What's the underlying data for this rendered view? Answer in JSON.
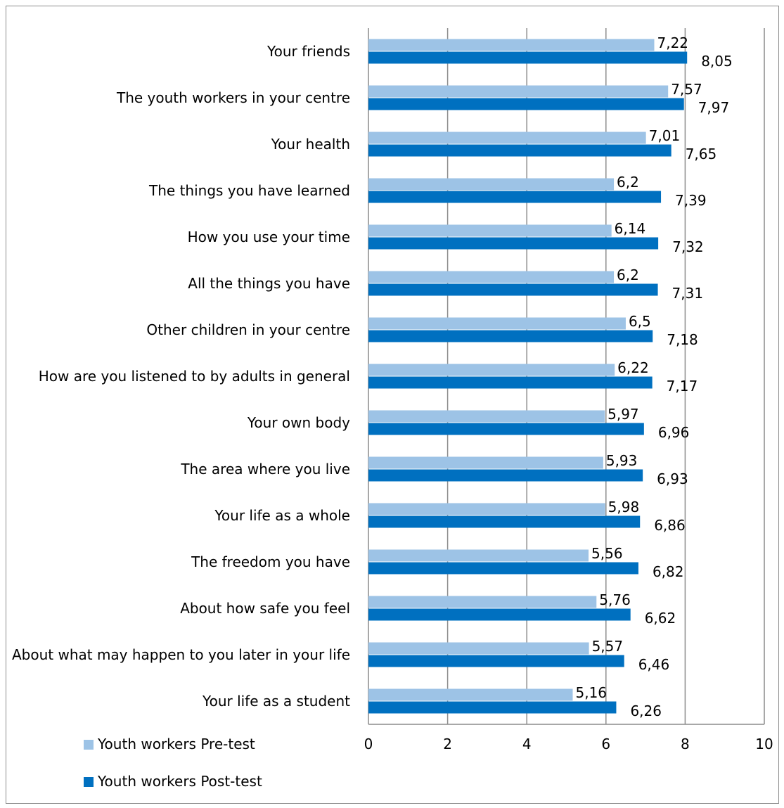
{
  "chart_data": {
    "type": "bar",
    "orientation": "horizontal",
    "categories": [
      "Your friends",
      "The youth workers in your centre",
      "Your health",
      "The things you have learned",
      "How you use your time",
      "All the things you have",
      "Other children in your centre",
      "How are you listened to by adults in general",
      "Your own body",
      "The area where you live",
      "Your life as a whole",
      "The freedom you have",
      "About how safe you feel",
      "About what may happen to you later in your life",
      "Your life as a student"
    ],
    "series": [
      {
        "name": "Youth workers Pre-test",
        "color": "#9dc3e6",
        "values": [
          7.22,
          7.57,
          7.01,
          6.2,
          6.14,
          6.2,
          6.5,
          6.22,
          5.97,
          5.93,
          5.98,
          5.56,
          5.76,
          5.57,
          5.16
        ],
        "labels": [
          "7,22",
          "7,57",
          "7,01",
          "6,2",
          "6,14",
          "6,2",
          "6,5",
          "6,22",
          "5,97",
          "5,93",
          "5,98",
          "5,56",
          "5,76",
          "5,57",
          "5,16"
        ]
      },
      {
        "name": "Youth workers Post-test",
        "color": "#0070c0",
        "values": [
          8.05,
          7.97,
          7.65,
          7.39,
          7.32,
          7.31,
          7.18,
          7.17,
          6.96,
          6.93,
          6.86,
          6.82,
          6.62,
          6.46,
          6.26
        ],
        "labels": [
          "8,05",
          "7,97",
          "7,65",
          "7,39",
          "7,32",
          "7,31",
          "7,18",
          "7,17",
          "6,96",
          "6,93",
          "6,86",
          "6,82",
          "6,62",
          "6,46",
          "6,26"
        ]
      }
    ],
    "xlim": [
      0,
      10
    ],
    "x_ticks": [
      "0",
      "2",
      "4",
      "6",
      "8",
      "10"
    ],
    "grid": true,
    "legend_position": "bottom-left",
    "title": "",
    "xlabel": "",
    "ylabel": ""
  }
}
